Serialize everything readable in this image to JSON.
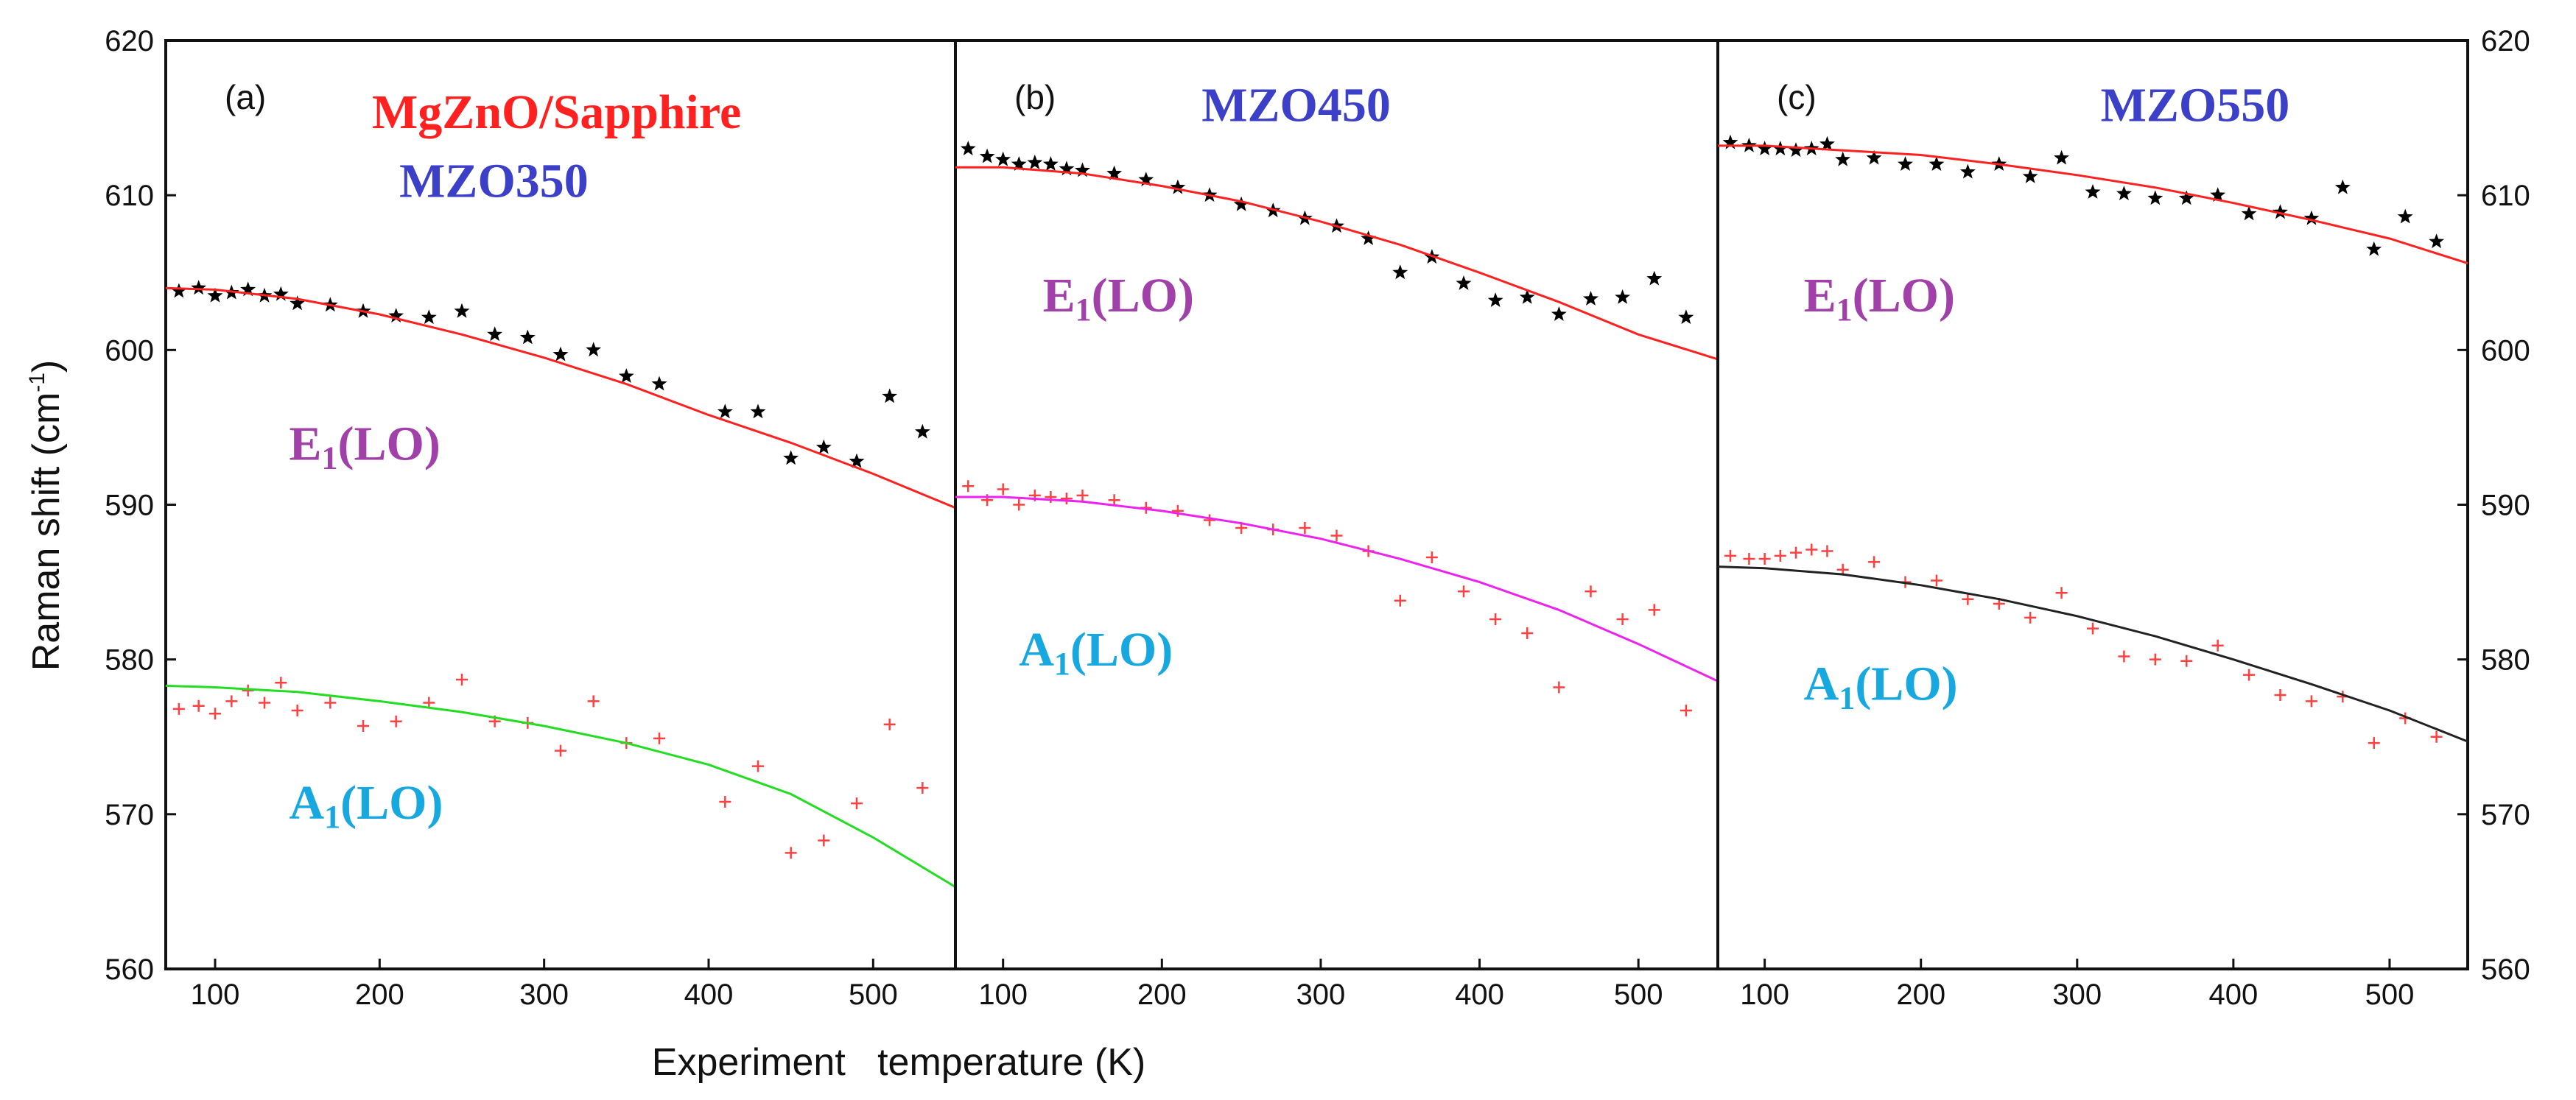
{
  "chart_data": {
    "type": "scatter",
    "ylabel": "Raman shift (cm",
    "ylabel_sup": "-1",
    "ylabel_close": ")",
    "xlabel": "Experiment   temperature (K)",
    "ylim": [
      560,
      620
    ],
    "yticks": [
      560,
      570,
      580,
      590,
      600,
      610,
      620
    ],
    "xlim": [
      70,
      550
    ],
    "xticks": [
      100,
      200,
      300,
      400,
      500
    ],
    "title": "MgZnO/Sapphire",
    "title_color": "#ff2020",
    "panels": [
      {
        "label": "(a)",
        "sample": "MZO350",
        "sample_color": "#3c3fc8",
        "annotations": [
          {
            "main": "E",
            "sub": "1",
            "rest": "(LO)",
            "color": "#a040a8",
            "x": 145,
            "y": 592.9
          },
          {
            "main": "A",
            "sub": "1",
            "rest": "(LO)",
            "color": "#18a8e0",
            "x": 145,
            "y": 569.7
          }
        ],
        "series": [
          {
            "name": "E1(LO)",
            "marker": "star",
            "color": "#000000",
            "x": [
              78,
              90,
              100,
              110,
              120,
              130,
              140,
              150,
              170,
              190,
              210,
              230,
              250,
              270,
              290,
              310,
              330,
              350,
              370,
              410,
              430,
              450,
              470,
              490,
              510,
              530
            ],
            "y": [
              603.8,
              604.0,
              603.5,
              603.7,
              603.9,
              603.5,
              603.6,
              603.0,
              602.9,
              602.5,
              602.2,
              602.1,
              602.5,
              601.0,
              600.8,
              599.7,
              600.0,
              598.3,
              597.8,
              596.0,
              596.0,
              593.0,
              593.7,
              592.8,
              597.0,
              594.7
            ]
          },
          {
            "name": "A1(LO)",
            "marker": "plus",
            "color": "#ff4040",
            "x": [
              78,
              90,
              100,
              110,
              120,
              130,
              140,
              150,
              170,
              190,
              210,
              230,
              250,
              270,
              290,
              310,
              330,
              350,
              370,
              410,
              430,
              450,
              470,
              490,
              510,
              530
            ],
            "y": [
              576.8,
              577.0,
              576.5,
              577.3,
              578.0,
              577.2,
              578.5,
              576.7,
              577.2,
              575.7,
              576.0,
              577.2,
              578.7,
              576.0,
              575.9,
              574.1,
              577.3,
              574.6,
              574.9,
              570.8,
              573.1,
              567.5,
              568.3,
              570.7,
              575.8,
              571.7
            ]
          },
          {
            "name": "E1(LO) fit",
            "marker": "line",
            "color": "#ff2020",
            "x": [
              70,
              100,
              150,
              200,
              250,
              300,
              350,
              400,
              450,
              500,
              550
            ],
            "y": [
              604.0,
              603.9,
              603.3,
              602.3,
              601.0,
              599.5,
              597.8,
              595.8,
              594.0,
              592.0,
              589.8
            ]
          },
          {
            "name": "A1(LO) fit",
            "marker": "line",
            "color": "#22dd22",
            "x": [
              70,
              100,
              150,
              200,
              250,
              300,
              350,
              400,
              450,
              500,
              550
            ],
            "y": [
              578.3,
              578.2,
              577.9,
              577.3,
              576.6,
              575.7,
              574.6,
              573.2,
              571.3,
              568.5,
              565.3
            ]
          }
        ]
      },
      {
        "label": "(b)",
        "sample": "MZO450",
        "sample_color": "#3c3fc8",
        "annotations": [
          {
            "main": "E",
            "sub": "1",
            "rest": "(LO)",
            "color": "#a040a8",
            "x": 125,
            "y": 602.5
          },
          {
            "main": "A",
            "sub": "1",
            "rest": "(LO)",
            "color": "#18a8e0",
            "x": 110,
            "y": 579.6
          }
        ],
        "series": [
          {
            "name": "E1(LO)",
            "marker": "star",
            "color": "#000000",
            "x": [
              78,
              90,
              100,
              110,
              120,
              130,
              140,
              150,
              170,
              190,
              210,
              230,
              250,
              270,
              290,
              310,
              330,
              350,
              370,
              390,
              410,
              430,
              450,
              470,
              490,
              510,
              530
            ],
            "y": [
              613.0,
              612.5,
              612.3,
              612.0,
              612.1,
              612.0,
              611.7,
              611.6,
              611.4,
              611.0,
              610.5,
              610.0,
              609.4,
              609.0,
              608.5,
              608.0,
              607.2,
              605.0,
              606.0,
              604.3,
              603.2,
              603.4,
              602.3,
              603.3,
              603.4,
              604.6,
              602.1
            ]
          },
          {
            "name": "A1(LO)",
            "marker": "plus",
            "color": "#ff4040",
            "x": [
              78,
              90,
              100,
              110,
              120,
              130,
              140,
              150,
              170,
              190,
              210,
              230,
              250,
              270,
              290,
              310,
              330,
              350,
              370,
              390,
              410,
              430,
              450,
              470,
              490,
              510,
              530
            ],
            "y": [
              591.2,
              590.3,
              591.0,
              590.0,
              590.6,
              590.5,
              590.4,
              590.6,
              590.3,
              589.8,
              589.6,
              589.0,
              588.5,
              588.4,
              588.5,
              588.0,
              587.0,
              583.8,
              586.6,
              584.4,
              582.6,
              581.7,
              578.2,
              584.4,
              582.6,
              583.2,
              576.7
            ]
          },
          {
            "name": "E1(LO) fit",
            "marker": "line",
            "color": "#ff2020",
            "x": [
              70,
              100,
              150,
              200,
              250,
              300,
              350,
              400,
              450,
              500,
              550
            ],
            "y": [
              611.8,
              611.8,
              611.4,
              610.6,
              609.6,
              608.3,
              606.8,
              605.0,
              603.1,
              601.0,
              599.4
            ]
          },
          {
            "name": "A1(LO) fit",
            "marker": "line",
            "color": "#ee22ee",
            "x": [
              70,
              100,
              150,
              200,
              250,
              300,
              350,
              400,
              450,
              500,
              550
            ],
            "y": [
              590.5,
              590.5,
              590.2,
              589.6,
              588.8,
              587.8,
              586.5,
              585.0,
              583.2,
              581.0,
              578.6
            ]
          }
        ]
      },
      {
        "label": "(c)",
        "sample": "MZO550",
        "sample_color": "#3c3fc8",
        "annotations": [
          {
            "main": "E",
            "sub": "1",
            "rest": "(LO)",
            "color": "#a040a8",
            "x": 125,
            "y": 602.5
          },
          {
            "main": "A",
            "sub": "1",
            "rest": "(LO)",
            "color": "#18a8e0",
            "x": 125,
            "y": 577.4
          }
        ],
        "series": [
          {
            "name": "E1(LO)",
            "marker": "star",
            "color": "#000000",
            "x": [
              78,
              90,
              100,
              110,
              120,
              130,
              140,
              150,
              170,
              190,
              210,
              230,
              250,
              270,
              290,
              310,
              330,
              350,
              370,
              390,
              410,
              430,
              450,
              470,
              490,
              510,
              530
            ],
            "y": [
              613.4,
              613.2,
              613.0,
              613.0,
              612.9,
              613.0,
              613.3,
              612.3,
              612.4,
              612.0,
              612.0,
              611.5,
              612.0,
              611.2,
              612.4,
              610.2,
              610.1,
              609.8,
              609.8,
              610.0,
              608.8,
              608.9,
              608.5,
              610.5,
              606.5,
              608.6,
              607.0
            ]
          },
          {
            "name": "A1(LO)",
            "marker": "plus",
            "color": "#ff4040",
            "x": [
              78,
              90,
              100,
              110,
              120,
              130,
              140,
              150,
              170,
              190,
              210,
              230,
              250,
              270,
              290,
              310,
              330,
              350,
              370,
              390,
              410,
              430,
              450,
              470,
              490,
              510,
              530
            ],
            "y": [
              586.7,
              586.5,
              586.5,
              586.7,
              586.9,
              587.1,
              587.0,
              585.8,
              586.3,
              585.0,
              585.1,
              583.9,
              583.6,
              582.7,
              584.3,
              582.0,
              580.2,
              580.0,
              579.9,
              580.9,
              579.0,
              577.7,
              577.3,
              577.6,
              574.6,
              576.2,
              575.0
            ]
          },
          {
            "name": "E1(LO) fit",
            "marker": "line",
            "color": "#ff2020",
            "x": [
              70,
              100,
              150,
              200,
              250,
              300,
              350,
              400,
              450,
              500,
              550
            ],
            "y": [
              613.2,
              613.2,
              612.9,
              612.6,
              612.0,
              611.3,
              610.5,
              609.5,
              608.4,
              607.2,
              605.6
            ]
          },
          {
            "name": "A1(LO) fit",
            "marker": "line",
            "color": "#222222",
            "x": [
              70,
              100,
              150,
              200,
              250,
              300,
              350,
              400,
              450,
              500,
              550
            ],
            "y": [
              586.0,
              585.9,
              585.5,
              584.8,
              583.9,
              582.8,
              581.5,
              580.0,
              578.4,
              576.7,
              574.7
            ]
          }
        ]
      }
    ]
  }
}
